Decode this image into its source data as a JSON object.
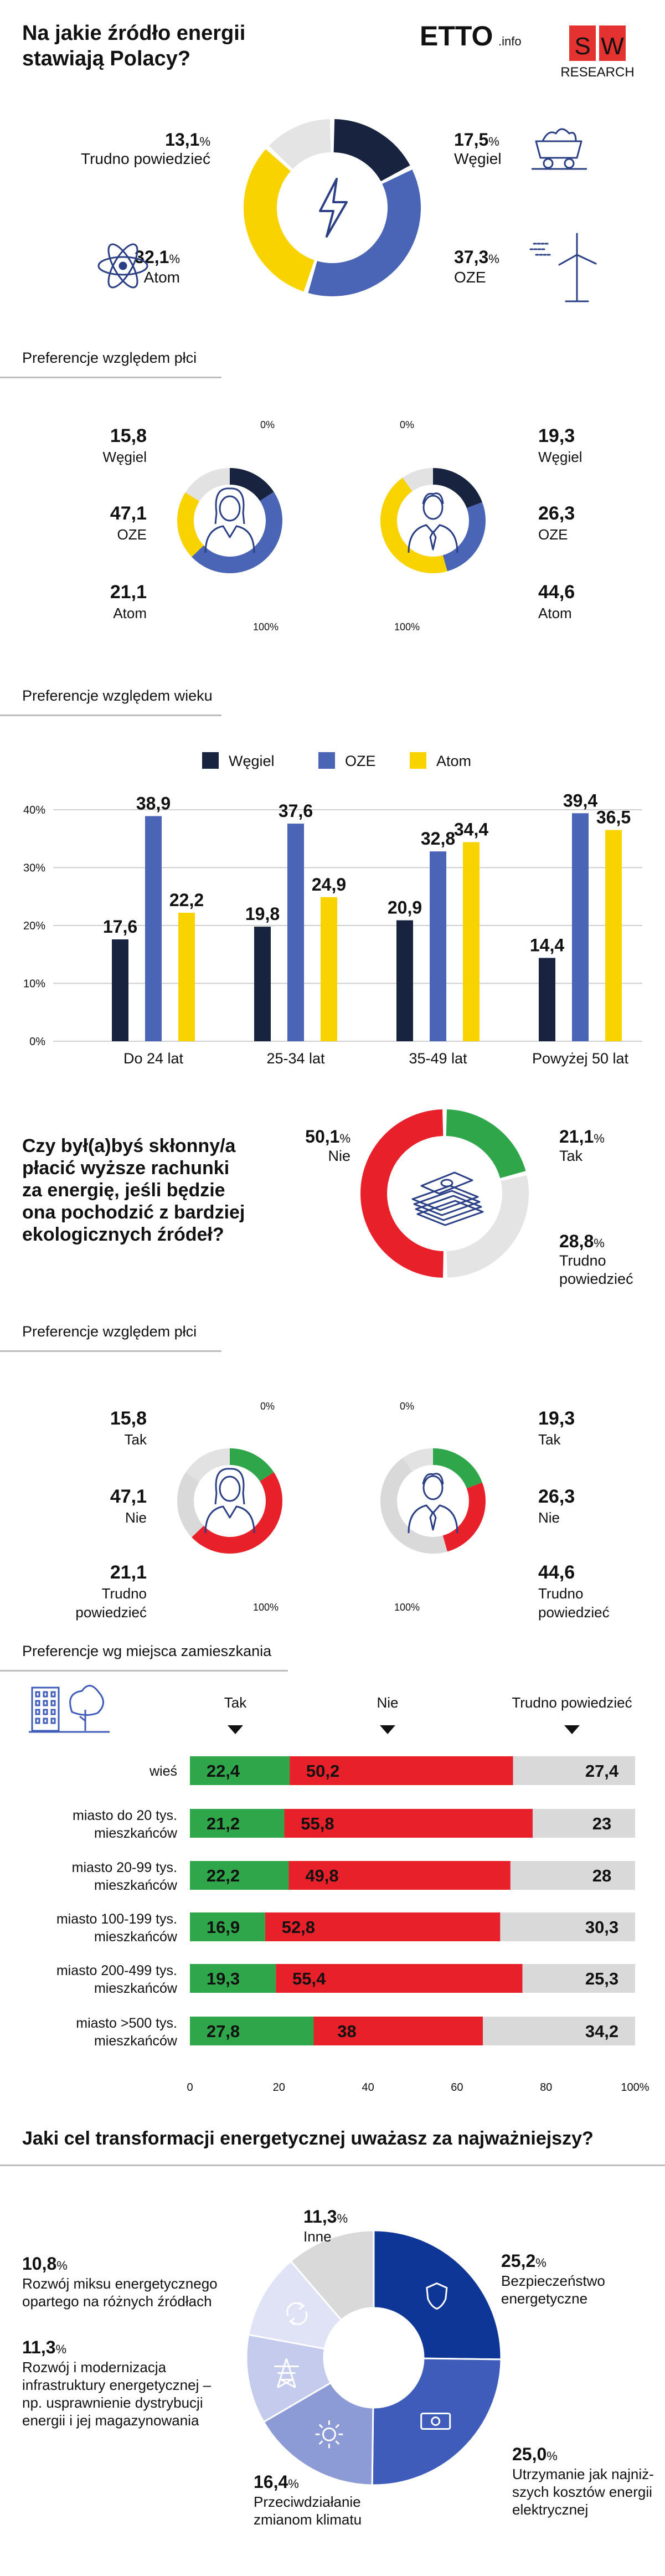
{
  "colors": {
    "coal": "#17233f",
    "oze": "#4a65b6",
    "atom": "#f8d300",
    "unsure": "#e4e4e4",
    "tak": "#2fa64a",
    "nie": "#e8202a",
    "grey": "#d9d9d9",
    "navy": "#0e3696",
    "blue_mid": "#3f5cbb",
    "blue_light": "#8c9ad6",
    "blue_pale": "#c4cbec",
    "icon_line": "#2a3f86",
    "red_brand": "#e3322f"
  },
  "header": {
    "question": [
      "Na jakie źródło energii",
      "stawiają Polacy?"
    ],
    "logo_etto": "ETTO",
    "logo_etto_suffix": ".info",
    "logo_sw_s": "S",
    "logo_sw_w": "W",
    "logo_sw_research": "RESEARCH"
  },
  "sections": {
    "gender_1": "Preferencje względem płci",
    "age": "Preferencje względem wieku",
    "gender_2": "Preferencje względem płci",
    "residence": "Preferencje wg miejsca zamieszkania",
    "goal_question": "Jaki cel transformacji energetycznej uważasz za najważniejszy?"
  },
  "q2_question": [
    "Czy był(a)byś skłonny/a",
    "płacić wyższe rachunki",
    "za energię, jeśli będzie",
    "ona pochodzić z bardziej",
    "ekologicznych źródeł?"
  ],
  "chart_data": [
    {
      "id": "energy_sources",
      "type": "pie",
      "categories": [
        "Węgiel",
        "OZE",
        "Atom",
        "Trudno powiedzieć"
      ],
      "values": [
        17.5,
        37.3,
        32.1,
        13.1
      ],
      "labels": [
        {
          "num": "17,5",
          "unit": "%",
          "text": "Węgiel"
        },
        {
          "num": "37,3",
          "unit": "%",
          "text": "OZE"
        },
        {
          "num": "32,1",
          "unit": "%",
          "text": "Atom"
        },
        {
          "num": "13,1",
          "unit": "%",
          "text": "Trudno powiedzieć"
        }
      ]
    },
    {
      "id": "energy_by_gender",
      "type": "pie",
      "scale_start": "0%",
      "scale_end": "100%",
      "categories": [
        "Węgiel",
        "OZE",
        "Atom"
      ],
      "series": [
        {
          "name": "Kobiety",
          "values": [
            15.8,
            47.1,
            21.1
          ],
          "labels": [
            "15,8",
            "47,1",
            "21,1"
          ]
        },
        {
          "name": "Mężczyźni",
          "values": [
            19.3,
            26.3,
            44.6
          ],
          "labels": [
            "19,3",
            "26,3",
            "44,6"
          ]
        }
      ]
    },
    {
      "id": "energy_by_age",
      "type": "bar",
      "categories": [
        "Do 24 lat",
        "25-34 lat",
        "35-49 lat",
        "Powyżej 50 lat"
      ],
      "series": [
        {
          "name": "Węgiel",
          "values": [
            17.6,
            19.8,
            20.9,
            14.4
          ],
          "labels": [
            "17,6",
            "19,8",
            "20,9",
            "14,4"
          ]
        },
        {
          "name": "OZE",
          "values": [
            38.9,
            37.6,
            32.8,
            39.4
          ],
          "labels": [
            "38,9",
            "37,6",
            "32,8",
            "39,4"
          ]
        },
        {
          "name": "Atom",
          "values": [
            22.2,
            24.9,
            34.4,
            36.5
          ],
          "labels": [
            "22,2",
            "24,9",
            "34,4",
            "36,5"
          ]
        }
      ],
      "ylim": [
        0,
        40
      ],
      "yticks": [
        "0%",
        "10%",
        "20%",
        "30%",
        "40%"
      ],
      "grid": true,
      "legend": "top"
    },
    {
      "id": "pay_more",
      "type": "pie",
      "categories": [
        "Tak",
        "Trudno powiedzieć",
        "Nie"
      ],
      "values": [
        21.1,
        28.8,
        50.1
      ],
      "labels": [
        {
          "num": "21,1",
          "unit": "%",
          "text": "Tak"
        },
        {
          "num": "28,8",
          "unit": "%",
          "text": "Trudno powiedzieć"
        },
        {
          "num": "50,1",
          "unit": "%",
          "text": "Nie"
        }
      ]
    },
    {
      "id": "pay_more_by_gender",
      "type": "pie",
      "scale_start": "0%",
      "scale_end": "100%",
      "categories": [
        "Tak",
        "Nie",
        "Trudno powiedzieć"
      ],
      "series": [
        {
          "name": "Kobiety",
          "values": [
            15.8,
            47.1,
            21.1
          ],
          "labels": [
            "15,8",
            "47,1",
            "21,1"
          ]
        },
        {
          "name": "Mężczyźni",
          "values": [
            19.3,
            26.3,
            44.6
          ],
          "labels": [
            "19,3",
            "26,3",
            "44,6"
          ]
        }
      ]
    },
    {
      "id": "pay_more_by_residence",
      "type": "bar",
      "orientation": "horizontal",
      "stacked": true,
      "legend": [
        "Tak",
        "Nie",
        "Trudno powiedzieć"
      ],
      "categories": [
        [
          "wieś"
        ],
        [
          "miasto do 20 tys.",
          "mieszkańców"
        ],
        [
          "miasto 20-99 tys.",
          "mieszkańców"
        ],
        [
          "miasto 100-199 tys.",
          "mieszkańców"
        ],
        [
          "miasto 200-499 tys.",
          "mieszkańców"
        ],
        [
          "miasto >500 tys.",
          "mieszkańców"
        ]
      ],
      "series": [
        {
          "name": "Tak",
          "values": [
            22.4,
            21.2,
            22.2,
            16.9,
            19.3,
            27.8
          ],
          "labels": [
            "22,4",
            "21,2",
            "22,2",
            "16,9",
            "19,3",
            "27,8"
          ]
        },
        {
          "name": "Nie",
          "values": [
            50.2,
            55.8,
            49.8,
            52.8,
            55.4,
            38
          ],
          "labels": [
            "50,2",
            "55,8",
            "49,8",
            "52,8",
            "55,4",
            "38"
          ]
        },
        {
          "name": "Trudno powiedzieć",
          "values": [
            27.4,
            23,
            28,
            30.3,
            25.3,
            34.2
          ],
          "labels": [
            "27,4",
            "23",
            "28",
            "30,3",
            "25,3",
            "34,2"
          ]
        }
      ],
      "xlim": [
        0,
        100
      ],
      "xticks": [
        "0",
        "20",
        "40",
        "60",
        "80",
        "100%"
      ]
    },
    {
      "id": "transformation_goal",
      "type": "pie",
      "categories": [
        "Bezpieczeństwo energetyczne",
        "Utrzymanie jak najniższych kosztów energii elektrycznej",
        "Przeciwdziałanie zmianom klimatu",
        "Rozwój i modernizacja infrastruktury energetycznej",
        "Rozwój miksu energetycznego",
        "Inne"
      ],
      "values": [
        25.2,
        25.0,
        16.4,
        11.3,
        10.8,
        11.3
      ],
      "labels": [
        {
          "num": "25,2",
          "unit": "%",
          "text": [
            "Bezpieczeństwo",
            "energetyczne"
          ]
        },
        {
          "num": "25,0",
          "unit": "%",
          "text": [
            "Utrzymanie jak najniż-",
            "szych kosztów energii",
            "elektrycznej"
          ]
        },
        {
          "num": "16,4",
          "unit": "%",
          "text": [
            "Przeciwdziałanie",
            "zmianom klimatu"
          ]
        },
        {
          "num": "11,3",
          "unit": "%",
          "text": [
            "Rozwój i modernizacja",
            "infrastruktury energetycznej –",
            "np. usprawnienie dystrybucji",
            "energii i jej magazynowania"
          ]
        },
        {
          "num": "10,8",
          "unit": "%",
          "text": [
            "Rozwój miksu energetycznego",
            "opartego na różnych źródłach"
          ]
        },
        {
          "num": "11,3",
          "unit": "%",
          "text": [
            "Inne"
          ]
        }
      ]
    }
  ]
}
